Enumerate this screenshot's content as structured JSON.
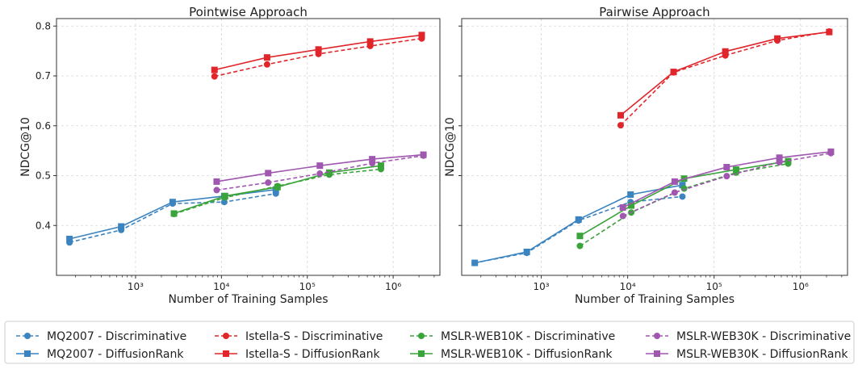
{
  "colors": {
    "MQ2007": "#3b84c0",
    "Istella-S": "#e0262b",
    "MSLR-WEB10K": "#3aa33a",
    "MSLR-WEB30K": "#a057b0"
  },
  "legend": [
    {
      "key": "MQ2007",
      "style": "dashed",
      "marker": "circle",
      "label": "MQ2007 - Discriminative"
    },
    {
      "key": "MQ2007",
      "style": "solid",
      "marker": "square",
      "label": "MQ2007 - DiffusionRank"
    },
    {
      "key": "Istella-S",
      "style": "dashed",
      "marker": "circle",
      "label": "Istella-S - Discriminative"
    },
    {
      "key": "Istella-S",
      "style": "solid",
      "marker": "square",
      "label": "Istella-S - DiffusionRank"
    },
    {
      "key": "MSLR-WEB10K",
      "style": "dashed",
      "marker": "circle",
      "label": "MSLR-WEB10K - Discriminative"
    },
    {
      "key": "MSLR-WEB10K",
      "style": "solid",
      "marker": "square",
      "label": "MSLR-WEB10K - DiffusionRank"
    },
    {
      "key": "MSLR-WEB30K",
      "style": "dashed",
      "marker": "circle",
      "label": "MSLR-WEB30K - Discriminative"
    },
    {
      "key": "MSLR-WEB30K",
      "style": "solid",
      "marker": "square",
      "label": "MSLR-WEB30K - DiffusionRank"
    }
  ],
  "chart_data": [
    {
      "type": "line",
      "title": "Pointwise Approach",
      "xlabel": "Number of Training Samples",
      "ylabel": "NDCG@10",
      "xscale": "log",
      "xlim": [
        120,
        3500000
      ],
      "ylim": [
        0.3,
        0.815
      ],
      "xticks": [
        {
          "value": 1000,
          "label": "10³"
        },
        {
          "value": 10000,
          "label": "10⁴"
        },
        {
          "value": 100000,
          "label": "10⁵"
        },
        {
          "value": 1000000,
          "label": "10⁶"
        }
      ],
      "yticks": [
        0.4,
        0.5,
        0.6,
        0.7,
        0.8
      ],
      "grid": true,
      "series": [
        {
          "dataset": "MQ2007",
          "method": "Discriminative",
          "style": "dashed",
          "marker": "circle",
          "x": [
            170,
            680,
            2700,
            10800,
            43000
          ],
          "y": [
            0.366,
            0.391,
            0.444,
            0.447,
            0.464
          ]
        },
        {
          "dataset": "MQ2007",
          "method": "DiffusionRank",
          "style": "solid",
          "marker": "square",
          "x": [
            170,
            680,
            2700,
            10800,
            43000
          ],
          "y": [
            0.373,
            0.398,
            0.447,
            0.459,
            0.472
          ]
        },
        {
          "dataset": "Istella-S",
          "method": "Discriminative",
          "style": "dashed",
          "marker": "circle",
          "x": [
            8300,
            34000,
            135000,
            540000,
            2150000
          ],
          "y": [
            0.699,
            0.723,
            0.744,
            0.76,
            0.775
          ]
        },
        {
          "dataset": "Istella-S",
          "method": "DiffusionRank",
          "style": "solid",
          "marker": "square",
          "x": [
            8300,
            34000,
            135000,
            540000,
            2150000
          ],
          "y": [
            0.712,
            0.737,
            0.753,
            0.769,
            0.782
          ]
        },
        {
          "dataset": "MSLR-WEB10K",
          "method": "Discriminative",
          "style": "dashed",
          "marker": "circle",
          "x": [
            2800,
            11000,
            45000,
            180000,
            720000
          ],
          "y": [
            0.423,
            0.456,
            0.479,
            0.502,
            0.513
          ]
        },
        {
          "dataset": "MSLR-WEB10K",
          "method": "DiffusionRank",
          "style": "solid",
          "marker": "square",
          "x": [
            2800,
            11000,
            45000,
            180000,
            720000
          ],
          "y": [
            0.424,
            0.459,
            0.477,
            0.506,
            0.52
          ]
        },
        {
          "dataset": "MSLR-WEB30K",
          "method": "Discriminative",
          "style": "dashed",
          "marker": "circle",
          "x": [
            8800,
            35000,
            140000,
            570000,
            2250000
          ],
          "y": [
            0.471,
            0.486,
            0.504,
            0.525,
            0.54
          ]
        },
        {
          "dataset": "MSLR-WEB30K",
          "method": "DiffusionRank",
          "style": "solid",
          "marker": "square",
          "x": [
            8800,
            35000,
            140000,
            570000,
            2250000
          ],
          "y": [
            0.488,
            0.505,
            0.52,
            0.533,
            0.542
          ]
        }
      ]
    },
    {
      "type": "line",
      "title": "Pairwise Approach",
      "xlabel": "Number of Training Samples",
      "ylabel": "NDCG@10",
      "xscale": "log",
      "xlim": [
        120,
        3500000
      ],
      "ylim": [
        0.3,
        0.815
      ],
      "xticks": [
        {
          "value": 1000,
          "label": "10³"
        },
        {
          "value": 10000,
          "label": "10⁴"
        },
        {
          "value": 100000,
          "label": "10⁵"
        },
        {
          "value": 1000000,
          "label": "10⁶"
        }
      ],
      "yticks": [
        0.4,
        0.5,
        0.6,
        0.7,
        0.8
      ],
      "grid": true,
      "series": [
        {
          "dataset": "MQ2007",
          "method": "Discriminative",
          "style": "dashed",
          "marker": "circle",
          "x": [
            170,
            680,
            2700,
            10800,
            43000
          ],
          "y": [
            0.325,
            0.345,
            0.41,
            0.447,
            0.458
          ]
        },
        {
          "dataset": "MQ2007",
          "method": "DiffusionRank",
          "style": "solid",
          "marker": "square",
          "x": [
            170,
            680,
            2700,
            10800,
            43000
          ],
          "y": [
            0.325,
            0.347,
            0.412,
            0.462,
            0.481
          ]
        },
        {
          "dataset": "Istella-S",
          "method": "Discriminative",
          "style": "dashed",
          "marker": "circle",
          "x": [
            8300,
            34000,
            135000,
            540000,
            2150000
          ],
          "y": [
            0.601,
            0.707,
            0.741,
            0.771,
            0.789
          ]
        },
        {
          "dataset": "Istella-S",
          "method": "DiffusionRank",
          "style": "solid",
          "marker": "square",
          "x": [
            8300,
            34000,
            135000,
            540000,
            2150000
          ],
          "y": [
            0.621,
            0.708,
            0.749,
            0.775,
            0.788
          ]
        },
        {
          "dataset": "MSLR-WEB10K",
          "method": "Discriminative",
          "style": "dashed",
          "marker": "circle",
          "x": [
            2800,
            11000,
            45000,
            180000,
            720000
          ],
          "y": [
            0.359,
            0.426,
            0.474,
            0.506,
            0.524
          ]
        },
        {
          "dataset": "MSLR-WEB10K",
          "method": "DiffusionRank",
          "style": "solid",
          "marker": "square",
          "x": [
            2800,
            11000,
            45000,
            180000,
            720000
          ],
          "y": [
            0.379,
            0.44,
            0.494,
            0.512,
            0.529
          ]
        },
        {
          "dataset": "MSLR-WEB30K",
          "method": "Discriminative",
          "style": "dashed",
          "marker": "circle",
          "x": [
            8800,
            35000,
            140000,
            570000,
            2250000
          ],
          "y": [
            0.419,
            0.466,
            0.499,
            0.527,
            0.545
          ]
        },
        {
          "dataset": "MSLR-WEB30K",
          "method": "DiffusionRank",
          "style": "solid",
          "marker": "square",
          "x": [
            8800,
            35000,
            140000,
            570000,
            2250000
          ],
          "y": [
            0.436,
            0.488,
            0.517,
            0.536,
            0.548
          ]
        }
      ]
    }
  ]
}
